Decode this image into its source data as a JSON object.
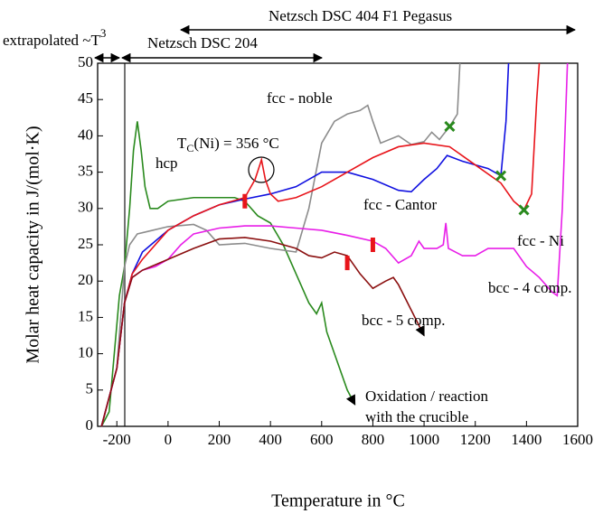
{
  "chart_data": {
    "type": "line",
    "xlabel": "Temperature in °C",
    "ylabel": "Molar heat capacity in J/(mol·K)",
    "xlim": [
      -275,
      1600
    ],
    "xticks": [
      -200,
      0,
      200,
      400,
      600,
      800,
      1000,
      1200,
      1400,
      1600
    ],
    "ylim": [
      0,
      50
    ],
    "yticks": [
      0,
      5,
      10,
      15,
      20,
      25,
      30,
      35,
      40,
      45,
      50
    ],
    "series": [
      {
        "name": "hcp",
        "color": "#2a8a1e",
        "arrow": true,
        "x": [
          -260,
          -230,
          -210,
          -190,
          -170,
          -150,
          -135,
          -120,
          -105,
          -90,
          -70,
          -40,
          0,
          100,
          200,
          260,
          300,
          350,
          400,
          450,
          500,
          550,
          580,
          600,
          620,
          660,
          700,
          730
        ],
        "values": [
          0,
          2,
          10,
          18,
          22,
          30,
          38,
          42,
          38,
          33,
          30,
          30,
          31,
          31.5,
          31.5,
          31.5,
          31,
          29,
          28,
          25,
          21,
          17,
          15.5,
          17,
          13,
          9,
          5,
          3
        ]
      },
      {
        "name": "fcc - noble",
        "color": "#8c8c8c",
        "x": [
          -260,
          -200,
          -170,
          -150,
          -120,
          -60,
          0,
          100,
          150,
          200,
          300,
          400,
          500,
          550,
          600,
          650,
          700,
          750,
          780,
          800,
          830,
          900,
          950,
          1000,
          1030,
          1060,
          1100,
          1130,
          1140
        ],
        "values": [
          0,
          8,
          22,
          25,
          26.5,
          27,
          27.5,
          27.8,
          27,
          25,
          25.2,
          24.5,
          24,
          30,
          39,
          42,
          43,
          43.5,
          44.2,
          42,
          39,
          40,
          38.8,
          39.2,
          40.5,
          39.5,
          41.3,
          43,
          50
        ]
      },
      {
        "name": "fcc - Cantor",
        "color": "#1010e0",
        "x": [
          -260,
          -200,
          -170,
          -140,
          -100,
          0,
          100,
          200,
          300,
          400,
          500,
          600,
          700,
          800,
          900,
          950,
          1000,
          1050,
          1090,
          1150,
          1250,
          1300,
          1320,
          1330
        ],
        "values": [
          0,
          8,
          17,
          21,
          24,
          27,
          29,
          30.5,
          31.3,
          32,
          33,
          35,
          35,
          34,
          32.5,
          32.3,
          34,
          35.5,
          37.3,
          36.5,
          35.5,
          34.5,
          42,
          50
        ]
      },
      {
        "name": "fcc - Ni",
        "color": "#e8141a",
        "x": [
          -260,
          -200,
          -170,
          -140,
          -100,
          0,
          100,
          200,
          300,
          340,
          365,
          380,
          400,
          430,
          500,
          600,
          700,
          800,
          900,
          1000,
          1100,
          1200,
          1300,
          1350,
          1390,
          1420,
          1440,
          1450
        ],
        "values": [
          0,
          8,
          17,
          21,
          23,
          27,
          29,
          30.5,
          31.5,
          34,
          36.7,
          34,
          32,
          31,
          31.5,
          33,
          35,
          37,
          38.5,
          39,
          38.5,
          36,
          33.5,
          31,
          29.8,
          32,
          45,
          50
        ]
      },
      {
        "name": "bcc - 4 comp.",
        "color": "#e81ee8",
        "x": [
          -260,
          -200,
          -170,
          -140,
          -100,
          -50,
          0,
          50,
          100,
          200,
          300,
          400,
          500,
          600,
          700,
          800,
          850,
          900,
          950,
          980,
          1000,
          1050,
          1075,
          1085,
          1095,
          1150,
          1200,
          1250,
          1300,
          1350,
          1400,
          1450,
          1500,
          1520,
          1540,
          1560
        ],
        "values": [
          0,
          8,
          17,
          20.5,
          21.5,
          22,
          23,
          25,
          26.5,
          27.3,
          27.6,
          27.6,
          27.3,
          27,
          26.3,
          25.5,
          24.5,
          22.5,
          23.5,
          25.5,
          24.5,
          24.5,
          25,
          28,
          24.5,
          23.5,
          23.5,
          24.5,
          24.5,
          24.5,
          22,
          20.5,
          18.5,
          18,
          30,
          50
        ]
      },
      {
        "name": "bcc - 5 comp.",
        "color": "#8b1010",
        "arrow": true,
        "x": [
          -260,
          -200,
          -170,
          -140,
          -100,
          0,
          100,
          200,
          300,
          400,
          500,
          550,
          600,
          650,
          700,
          750,
          800,
          850,
          880,
          900,
          950,
          1000
        ],
        "values": [
          0,
          8,
          17,
          20.5,
          21.5,
          23,
          24.5,
          25.8,
          26,
          25.5,
          24.5,
          23.5,
          23.2,
          24,
          23.5,
          21,
          19,
          20,
          20.5,
          19.5,
          16,
          12.5
        ]
      }
    ],
    "markers": [
      {
        "x": 300,
        "y": 31,
        "color": "#e8141a",
        "shape": "bar"
      },
      {
        "x": 700,
        "y": 22.5,
        "color": "#e8141a",
        "shape": "bar"
      },
      {
        "x": 800,
        "y": 25,
        "color": "#e8141a",
        "shape": "bar"
      },
      {
        "x": 1100,
        "y": 41.3,
        "color": "#2a8a1e",
        "shape": "x"
      },
      {
        "x": 1300,
        "y": 34.5,
        "color": "#2a8a1e",
        "shape": "x"
      },
      {
        "x": 1390,
        "y": 29.8,
        "color": "#2a8a1e",
        "shape": "x"
      }
    ],
    "annotations": {
      "extrapolated": [
        "extrapolated ~T",
        "3"
      ],
      "dsc204": "Netzsch DSC 204",
      "dsc404": "Netzsch DSC 404 F1 Pegasus",
      "tc": [
        "T",
        "C",
        "(Ni) = 356 °C"
      ],
      "oxidation": [
        "Oxidation / reaction",
        "with the crucible"
      ]
    }
  }
}
